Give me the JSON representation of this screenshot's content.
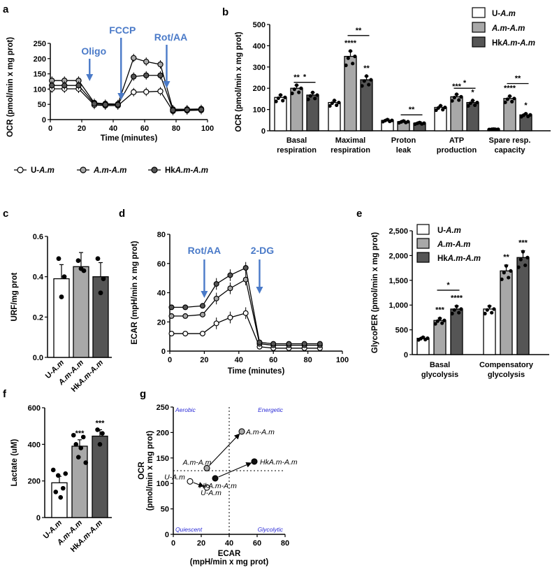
{
  "colors": {
    "u": "#ffffff",
    "am": "#a8a8a8",
    "hk": "#555555",
    "arrow": "#4a7ac8",
    "quadrant": "#2a2ad6"
  },
  "legend_a": [
    {
      "label": "U-A.m",
      "color": "#ffffff"
    },
    {
      "label": "A.m-A.m",
      "color": "#a8a8a8"
    },
    {
      "label": "HkA.m-A.m",
      "color": "#555555"
    }
  ],
  "chart_data": [
    {
      "panel": "a",
      "type": "line",
      "xlabel": "Time (minutes)",
      "ylabel": "OCR (pmol/min x mg prot)",
      "xlim": [
        0,
        100
      ],
      "ylim": [
        0,
        250
      ],
      "xticks": [
        0,
        20,
        40,
        60,
        80,
        100
      ],
      "yticks": [
        0,
        50,
        100,
        150,
        200,
        250
      ],
      "annotations": [
        {
          "text": "Oligo",
          "x": 25
        },
        {
          "text": "FCCP",
          "x": 45
        },
        {
          "text": "Rot/AA",
          "x": 74
        }
      ],
      "x": [
        1,
        9,
        18,
        28,
        35,
        43,
        53,
        61,
        70,
        78,
        87,
        96
      ],
      "series": [
        {
          "name": "U-A.m",
          "values": [
            101,
            101,
            101,
            48,
            46,
            46,
            90,
            91,
            93,
            28,
            30,
            31
          ]
        },
        {
          "name": "A.m-A.m",
          "values": [
            128,
            128,
            128,
            55,
            52,
            51,
            202,
            190,
            181,
            34,
            34,
            35
          ]
        },
        {
          "name": "HkA.m-A.m",
          "values": [
            112,
            112,
            112,
            52,
            49,
            49,
            141,
            145,
            145,
            31,
            32,
            33
          ]
        }
      ]
    },
    {
      "panel": "b",
      "type": "bar",
      "ylabel": "OCR (pmol/min x mg prot)",
      "ylim": [
        0,
        500
      ],
      "yticks": [
        0,
        100,
        200,
        300,
        400,
        500
      ],
      "categories": [
        "Basal respiration",
        "Maximal respiration",
        "Proton leak",
        "ATP production",
        "Spare resp. capacity"
      ],
      "series": [
        {
          "name": "U-A.m",
          "values": [
            157,
            133,
            49,
            110,
            7
          ]
        },
        {
          "name": "A.m-A.m",
          "values": [
            200,
            350,
            43,
            160,
            152
          ]
        },
        {
          "name": "HkA.m-A.m",
          "values": [
            168,
            240,
            36,
            133,
            75
          ]
        }
      ],
      "stars": [
        [
          "",
          "**",
          ""
        ],
        [
          "",
          "****",
          "**"
        ],
        [
          "",
          "",
          ""
        ],
        [
          "",
          "***",
          "*"
        ],
        [
          "",
          "****",
          "*"
        ]
      ],
      "brackets": [
        {
          "category": 0,
          "from": 1,
          "to": 2,
          "y": 228,
          "label": "*"
        },
        {
          "category": 1,
          "from": 1,
          "to": 2,
          "y": 448,
          "label": "**"
        },
        {
          "category": 2,
          "from": 1,
          "to": 2,
          "y": 75,
          "label": "**"
        },
        {
          "category": 3,
          "from": 1,
          "to": 2,
          "y": 200,
          "label": "*"
        },
        {
          "category": 4,
          "from": 1,
          "to": 2,
          "y": 222,
          "label": "**"
        }
      ]
    },
    {
      "panel": "c",
      "type": "bar",
      "ylabel": "URF/mg prot",
      "ylim": [
        0,
        0.6
      ],
      "yticks": [
        "0.0",
        "0.2",
        "0.4",
        "0.6"
      ],
      "categories": [
        "U-A.m",
        "A.m-A.m",
        "HkA.m-A.m"
      ],
      "values": [
        0.39,
        0.45,
        0.4
      ]
    },
    {
      "panel": "d",
      "type": "line",
      "xlabel": "Time (minutes)",
      "ylabel": "ECAR (mpH/min x mg prot)",
      "xlim": [
        0,
        100
      ],
      "ylim": [
        0,
        80
      ],
      "xticks": [
        0,
        20,
        40,
        60,
        80,
        100
      ],
      "yticks": [
        0,
        20,
        40,
        60,
        80
      ],
      "annotations": [
        {
          "text": "Rot/AA",
          "x": 20
        },
        {
          "text": "2-DG",
          "x": 52
        }
      ],
      "x": [
        1,
        9,
        19,
        27,
        35,
        44,
        52,
        60,
        69,
        78,
        87
      ],
      "series": [
        {
          "name": "U-A.m",
          "values": [
            12,
            12,
            12,
            19,
            23,
            26,
            3,
            2,
            2,
            2,
            2
          ]
        },
        {
          "name": "A.m-A.m",
          "values": [
            24,
            24,
            25,
            36,
            43,
            49,
            5,
            4,
            4,
            4,
            4
          ]
        },
        {
          "name": "HkA.m-A.m",
          "values": [
            30,
            30,
            31,
            46,
            52,
            57,
            6,
            5,
            5,
            5,
            5
          ]
        }
      ]
    },
    {
      "panel": "e",
      "type": "bar",
      "ylabel": "GlycoPER (pmol/min x mg prot)",
      "ylim": [
        0,
        2500
      ],
      "yticks": [
        "0",
        "500",
        "1,000",
        "1,500",
        "2,000",
        "2,500"
      ],
      "categories": [
        "Basal glycolysis",
        "Compensatory glycolysis"
      ],
      "series": [
        {
          "name": "U-A.m",
          "values": [
            330,
            920
          ]
        },
        {
          "name": "A.m-A.m",
          "values": [
            690,
            1690
          ]
        },
        {
          "name": "HkA.m-A.m",
          "values": [
            920,
            1960
          ]
        }
      ],
      "stars": [
        [
          "",
          "***",
          "****"
        ],
        [
          "",
          "**",
          "***"
        ]
      ],
      "brackets": [
        {
          "category": 0,
          "from": 1,
          "to": 2,
          "y": 1300,
          "label": "*"
        }
      ]
    },
    {
      "panel": "f",
      "type": "bar",
      "ylabel": "Lactate (uM)",
      "ylim": [
        0,
        600
      ],
      "yticks": [
        0,
        200,
        400,
        600
      ],
      "categories": [
        "U-A.m",
        "A.m-A.m",
        "HkA.m-A.m"
      ],
      "values": [
        190,
        390,
        445
      ],
      "stars": [
        "",
        "***",
        "***"
      ]
    },
    {
      "panel": "g",
      "type": "scatter",
      "xlabel": "ECAR",
      "xlabel2": "(mpH/min x mg prot)",
      "ylabel": "OCR",
      "ylabel2": "(pmol/min x mg prot)",
      "xlim": [
        0,
        80
      ],
      "ylim": [
        0,
        250
      ],
      "xticks": [
        0,
        20,
        40,
        60,
        80
      ],
      "yticks": [
        0,
        50,
        100,
        150,
        200,
        250
      ],
      "quadrants": [
        "Aerobic",
        "Energetic",
        "Quiescent",
        "Glycolytic"
      ],
      "points": [
        {
          "label": "U-A.m",
          "x": 12,
          "y": 104,
          "fill": "#ffffff"
        },
        {
          "label": "U-A.m",
          "x": 24,
          "y": 92,
          "fill": "#ffffff"
        },
        {
          "label": "A.m-A.m",
          "x": 24,
          "y": 130,
          "fill": "#a8a8a8"
        },
        {
          "label": "A.m-A.m",
          "x": 49,
          "y": 202,
          "fill": "#a8a8a8"
        },
        {
          "label": "HkA.m-A.m",
          "x": 30,
          "y": 110,
          "fill": "#111111"
        },
        {
          "label": "HkA.m-A.m",
          "x": 58,
          "y": 143,
          "fill": "#111111"
        }
      ],
      "arrows": [
        [
          0,
          1
        ],
        [
          2,
          3
        ],
        [
          4,
          5
        ]
      ]
    }
  ]
}
